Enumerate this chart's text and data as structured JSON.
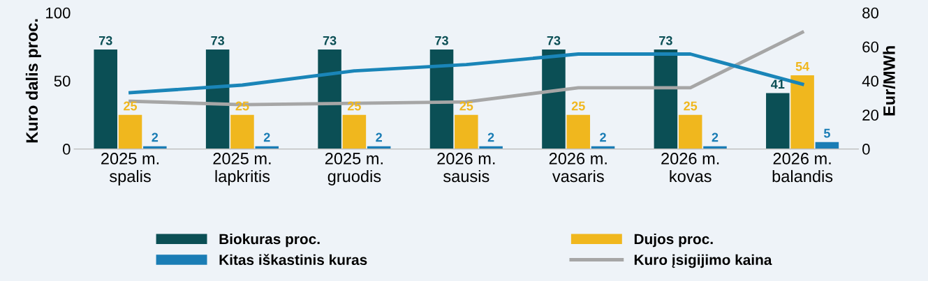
{
  "chart_data": {
    "type": "bar",
    "categories": [
      "2025 m.\nspalis",
      "2025 m.\nlapkritis",
      "2025 m.\ngruodis",
      "2026 m.\nsausis",
      "2026 m.\nvasaris",
      "2026 m.\nkovas",
      "2026 m.\nbalandis"
    ],
    "ylabel": "Kuro dalis proc.",
    "y2label": "Eur/MWh",
    "ylim": [
      0,
      100
    ],
    "yticks": [
      0,
      50,
      100
    ],
    "y2lim": [
      0,
      80
    ],
    "y2ticks": [
      0,
      20,
      40,
      60,
      80
    ],
    "grid": false,
    "legend": "bottom",
    "series": [
      {
        "name": "Biokuras proc.",
        "color": "#0b4f55",
        "values": [
          73,
          73,
          73,
          73,
          73,
          73,
          41
        ],
        "value_labels": [
          "73",
          "73",
          "73",
          "73",
          "73",
          "73",
          "41"
        ]
      },
      {
        "name": "Dujos proc.",
        "color": "#f0b71e",
        "values": [
          25,
          25,
          25,
          25,
          25,
          25,
          54
        ],
        "value_labels": [
          "25",
          "25",
          "25",
          "25",
          "25",
          "25",
          "54"
        ]
      },
      {
        "name": "Kitas iškastinis kuras",
        "color": "#1a7db5",
        "values": [
          2,
          2,
          2,
          2,
          2,
          2,
          5
        ],
        "value_labels": [
          "2",
          "2",
          "2",
          "2",
          "2",
          "2",
          "5"
        ]
      },
      {
        "name": "Kuro įsigijimo kaina",
        "type": "line",
        "axis": "y2",
        "color": "#a6a6a6",
        "values": [
          28,
          26,
          26.8,
          27.6,
          35.9,
          35.9,
          68.5
        ]
      },
      {
        "type": "line",
        "axis": "y2",
        "color": "#1a85b8",
        "values": [
          33,
          37.5,
          45.8,
          49.5,
          55.7,
          55.7,
          38
        ]
      }
    ]
  }
}
